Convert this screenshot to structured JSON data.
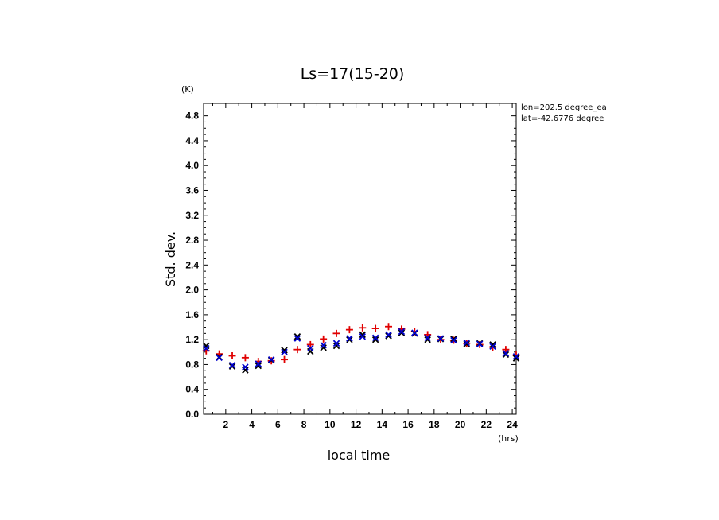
{
  "chart_data": {
    "type": "scatter",
    "title": "Ls=17(15-20)",
    "xlabel": "local time",
    "ylabel": "Std. dev.",
    "x_unit": "(hrs)",
    "y_unit": "(K)",
    "xlim": [
      0.3,
      24.3
    ],
    "ylim": [
      0.0,
      5.0
    ],
    "x_ticks": [
      2,
      4,
      6,
      8,
      10,
      12,
      14,
      16,
      18,
      20,
      22,
      24
    ],
    "y_ticks": [
      "0.0",
      "0.4",
      "0.8",
      "1.2",
      "1.6",
      "2.0",
      "2.4",
      "2.8",
      "3.2",
      "3.6",
      "4.0",
      "4.4",
      "4.8"
    ],
    "annotations": [
      "lon=202.5 degree_ea",
      "lat=-42.6776 degree"
    ],
    "x": [
      0.5,
      1.5,
      2.5,
      3.5,
      4.5,
      5.5,
      6.5,
      7.5,
      8.5,
      9.5,
      10.5,
      11.5,
      12.5,
      13.5,
      14.5,
      15.5,
      16.5,
      17.5,
      18.5,
      19.5,
      20.5,
      21.5,
      22.5,
      23.5,
      24.5
    ],
    "series": [
      {
        "marker": "plus",
        "color": "#e00000",
        "values": [
          1.02,
          0.97,
          0.94,
          0.91,
          0.85,
          0.86,
          0.88,
          1.04,
          1.12,
          1.21,
          1.3,
          1.36,
          1.39,
          1.38,
          1.41,
          1.37,
          1.33,
          1.28,
          1.2,
          1.19,
          1.14,
          1.12,
          1.08,
          1.04,
          0.95
        ]
      },
      {
        "marker": "cross",
        "color": "#000000",
        "values": [
          1.1,
          0.92,
          0.77,
          0.71,
          0.78,
          0.87,
          1.03,
          1.25,
          1.01,
          1.07,
          1.1,
          1.2,
          1.28,
          1.2,
          1.26,
          1.31,
          1.3,
          1.2,
          1.21,
          1.21,
          1.13,
          1.14,
          1.12,
          0.96,
          0.9
        ]
      },
      {
        "marker": "cross",
        "color": "#0000cc",
        "values": [
          1.06,
          0.91,
          0.79,
          0.76,
          0.81,
          0.88,
          1.0,
          1.22,
          1.06,
          1.11,
          1.14,
          1.22,
          1.25,
          1.23,
          1.28,
          1.33,
          1.31,
          1.23,
          1.22,
          1.19,
          1.15,
          1.13,
          1.09,
          0.98,
          0.93
        ]
      }
    ]
  }
}
